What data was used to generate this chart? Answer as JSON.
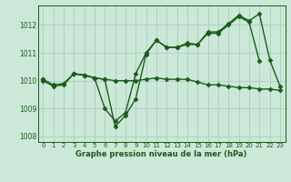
{
  "x": [
    0,
    1,
    2,
    3,
    4,
    5,
    6,
    7,
    8,
    9,
    10,
    11,
    12,
    13,
    14,
    15,
    16,
    17,
    18,
    19,
    20,
    21,
    22,
    23
  ],
  "line1": [
    1010.0,
    1009.8,
    1009.85,
    1010.25,
    1010.2,
    1010.1,
    1010.05,
    1010.0,
    1010.0,
    1010.0,
    1010.05,
    1010.1,
    1010.05,
    1010.05,
    1010.05,
    1009.95,
    1009.85,
    1009.85,
    1009.8,
    1009.75,
    1009.75,
    1009.7,
    1009.7,
    1009.65
  ],
  "line2": [
    1010.05,
    1009.85,
    1009.9,
    1010.25,
    1010.2,
    1010.1,
    1010.05,
    1008.35,
    1008.75,
    1009.35,
    1010.95,
    1011.45,
    1011.2,
    1011.2,
    1011.3,
    1011.3,
    1011.7,
    1011.7,
    1012.0,
    1012.3,
    1012.1,
    1010.7,
    null,
    null
  ],
  "line3": [
    1010.05,
    null,
    null,
    1010.25,
    1010.2,
    1010.1,
    1009.0,
    1008.55,
    1008.85,
    1010.25,
    1011.0,
    1011.45,
    1011.2,
    1011.2,
    1011.35,
    1011.3,
    1011.75,
    1011.75,
    1012.05,
    1012.35,
    1012.15,
    1012.4,
    1010.75,
    1009.8
  ],
  "bg_color": "#cce8d8",
  "grid_color": "#aacfbc",
  "line_color": "#1a5c1a",
  "marker": "D",
  "marker_size": 2.5,
  "ylim": [
    1007.8,
    1012.7
  ],
  "yticks": [
    1008,
    1009,
    1010,
    1011,
    1012
  ],
  "xlabel": "Graphe pression niveau de la mer (hPa)",
  "line_width": 1.0,
  "tick_fontsize": 5.0,
  "xlabel_fontsize": 6.0
}
